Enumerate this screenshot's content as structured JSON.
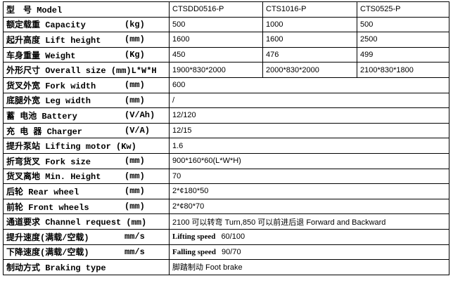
{
  "table": {
    "rows": [
      {
        "name": "型　号 Model",
        "unit": null,
        "cells": [
          "CTSDD0516-P",
          "CTS1016-P",
          "CTS0525-P"
        ]
      },
      {
        "name": "额定载重 Capacity",
        "unit": "(kg)",
        "cells": [
          "500",
          "1000",
          "500"
        ]
      },
      {
        "name": "起升高度 Lift height",
        "unit": "(mm)",
        "cells": [
          "1600",
          "1600",
          "2500"
        ]
      },
      {
        "name": "车身重量 Weight",
        "unit": "(Kg)",
        "cells": [
          "450",
          "476",
          "499"
        ]
      },
      {
        "name": "外形尺寸 Overall size (mm)L*W*H",
        "unit": null,
        "cells": [
          "1900*830*2000",
          "2000*830*2000",
          "2100*830*1800"
        ]
      },
      {
        "name": "货叉外宽 Fork width",
        "unit": "(mm)",
        "cells": [
          "600"
        ]
      },
      {
        "name": "底腿外宽 Leg width",
        "unit": "(mm)",
        "cells": [
          "/"
        ]
      },
      {
        "name": "蓄 电池 Battery",
        "unit": "(V/Ah)",
        "cells": [
          "12/120"
        ]
      },
      {
        "name": "充 电 器 Charger",
        "unit": "(V/A)",
        "cells": [
          "12/15"
        ]
      },
      {
        "name": "提升泵站 Lifting motor (Kw)",
        "unit": null,
        "cells": [
          "1.6"
        ]
      },
      {
        "name": "折弯货叉 Fork size",
        "unit": "(mm)",
        "cells": [
          "900*160*60(L*W*H)"
        ]
      },
      {
        "name": "货叉离地 Min. Height",
        "unit": "(mm)",
        "cells": [
          "70"
        ]
      },
      {
        "name": "后轮 Rear wheel",
        "unit": "(mm)",
        "cells": [
          "2*¢180*50"
        ]
      },
      {
        "name": "前轮 Front wheels",
        "unit": "(mm)",
        "cells": [
          "2*¢80*70"
        ]
      },
      {
        "name": "通道要求 Channel request (mm)",
        "unit": null,
        "cells": [
          "2100 可以转弯 Turn,850 可以前进后退  Forward and Backward"
        ]
      },
      {
        "name": "提升速度(满载/空载)",
        "unit": "mm/s",
        "strong": "Lifting speed",
        "cells": [
          "60/100"
        ]
      },
      {
        "name": "下降速度(满载/空载)",
        "unit": "mm/s",
        "strong": "Falling speed",
        "cells": [
          "90/70"
        ]
      },
      {
        "name": "制动方式 Braking type",
        "unit": null,
        "cells": [
          "脚踏制动 Foot brake"
        ]
      }
    ]
  }
}
